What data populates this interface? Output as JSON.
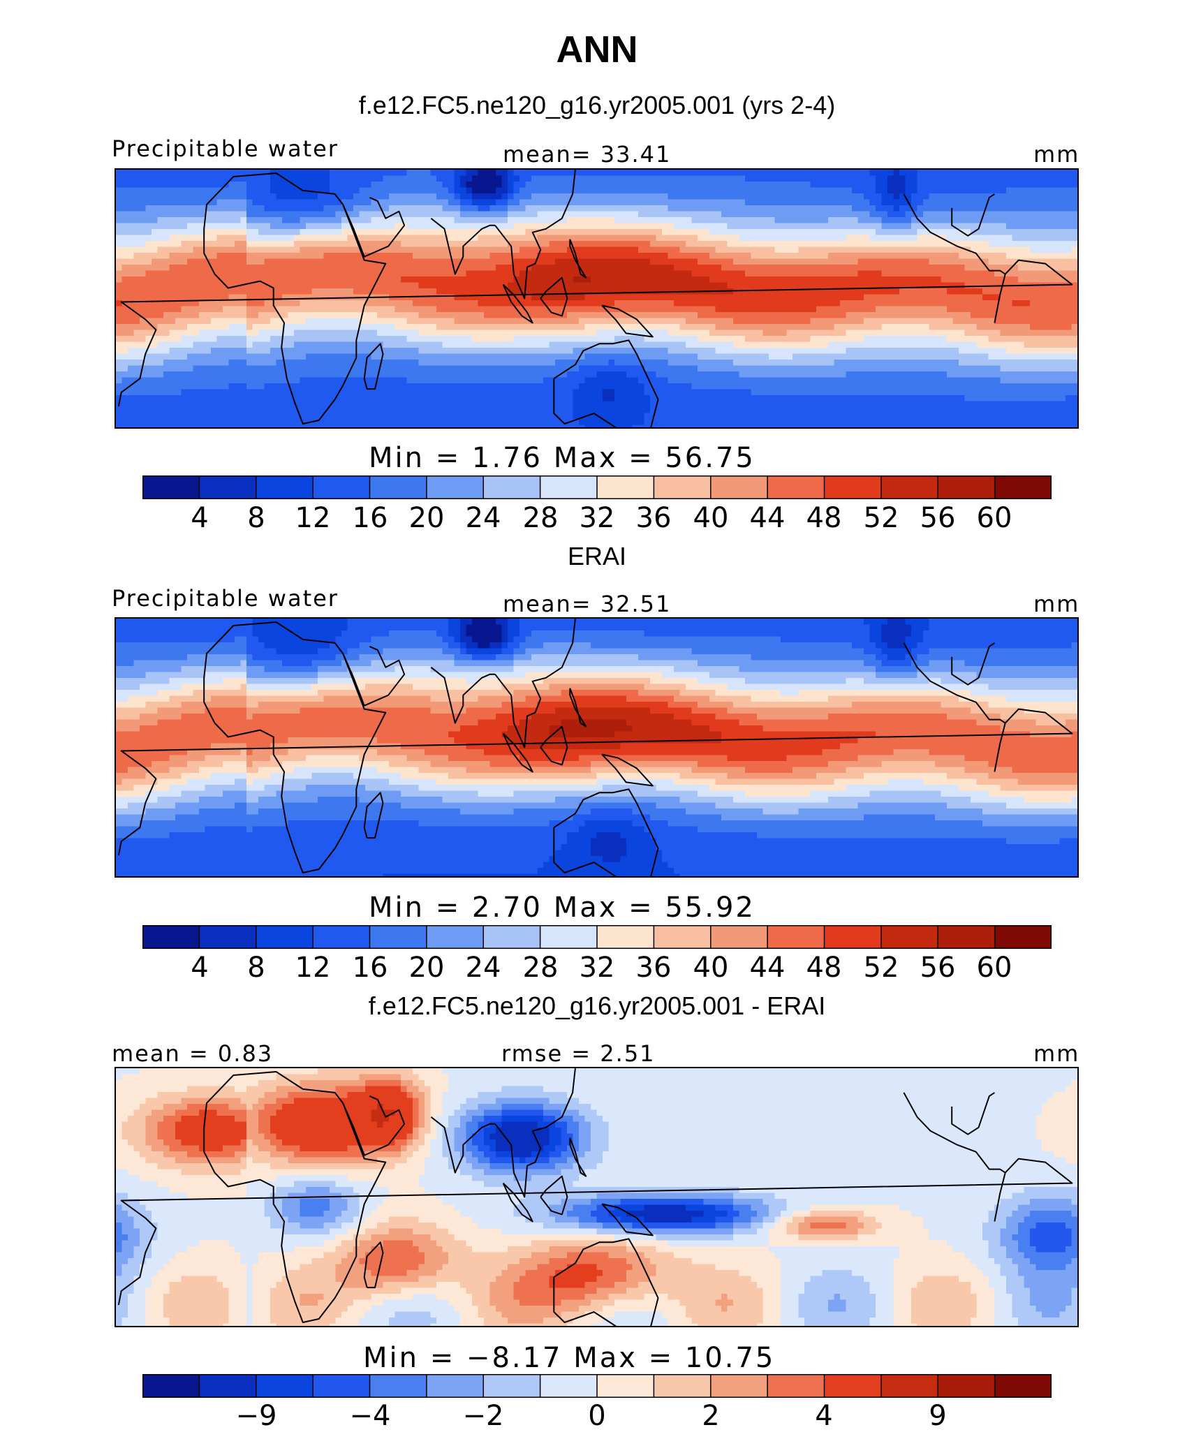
{
  "header": {
    "title": "ANN"
  },
  "colors": {
    "abs_palette": [
      "#08178f",
      "#0a2fbf",
      "#0b45e0",
      "#1f59ef",
      "#3e78f0",
      "#6e9bf3",
      "#a8c4f7",
      "#d6e5fb",
      "#fde4cf",
      "#f8bfa0",
      "#f29a78",
      "#ee6a48",
      "#e23a1c",
      "#c42a10",
      "#ad1e0b",
      "#7f0a03"
    ],
    "diff_palette": [
      "#08178f",
      "#0a2fbf",
      "#0b45e0",
      "#2257ef",
      "#4a7ff1",
      "#7da3f4",
      "#aec8f7",
      "#dbe8fc",
      "#fde7d6",
      "#f9c7a9",
      "#f3a07f",
      "#ee7250",
      "#e33f1e",
      "#c62d10",
      "#a81b09",
      "#7f0a03"
    ]
  },
  "panels": [
    {
      "subtitle": "f.e12.FC5.ne120_g16.yr2005.001 (yrs 2-4)",
      "left_label": "Precipitable water",
      "center_label": "mean=   33.41",
      "right_label": "mm",
      "minmax": "Min  =     1.76  Max  =    56.75",
      "ticks": [
        "4",
        "8",
        "12",
        "16",
        "20",
        "24",
        "28",
        "32",
        "36",
        "40",
        "44",
        "48",
        "52",
        "56",
        "60"
      ],
      "variant": "model"
    },
    {
      "subtitle": "ERAI",
      "left_label": "Precipitable water",
      "center_label": "mean=   32.51",
      "right_label": "mm",
      "minmax": "Min  =     2.70  Max  =    55.92",
      "ticks": [
        "4",
        "8",
        "12",
        "16",
        "20",
        "24",
        "28",
        "32",
        "36",
        "40",
        "44",
        "48",
        "52",
        "56",
        "60"
      ],
      "variant": "obs"
    },
    {
      "subtitle": "f.e12.FC5.ne120_g16.yr2005.001 - ERAI",
      "left_label": "mean =    0.83",
      "center_label": "rmse =    2.51",
      "right_label": "mm",
      "minmax": "Min  =   −8.17  Max  =    10.75",
      "ticks": [
        "−9",
        "−4",
        "−2",
        "0",
        "2",
        "4",
        "9"
      ],
      "variant": "diff"
    }
  ]
}
